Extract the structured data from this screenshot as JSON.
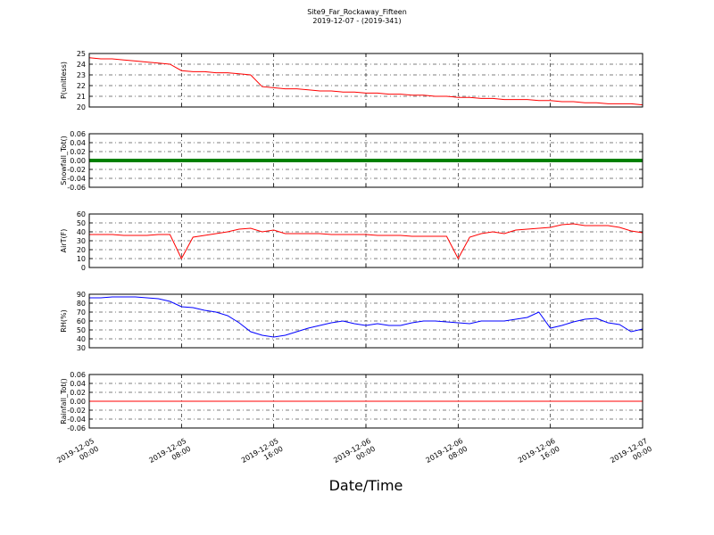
{
  "chart_data": [
    {
      "type": "line",
      "title": "Site9_Far_Rockaway_Fifteen",
      "subtitle": "2019-12-07 - (2019-341)",
      "ylabel": "P(unitless)",
      "x": [
        "2019-12-05 00:00",
        "2019-12-05 01:00",
        "2019-12-05 02:00",
        "2019-12-05 03:00",
        "2019-12-05 04:00",
        "2019-12-05 05:00",
        "2019-12-05 06:00",
        "2019-12-05 07:00",
        "2019-12-05 08:00",
        "2019-12-05 09:00",
        "2019-12-05 10:00",
        "2019-12-05 11:00",
        "2019-12-05 12:00",
        "2019-12-05 13:00",
        "2019-12-05 14:00",
        "2019-12-05 15:00",
        "2019-12-05 16:00",
        "2019-12-05 17:00",
        "2019-12-05 18:00",
        "2019-12-05 19:00",
        "2019-12-05 20:00",
        "2019-12-05 21:00",
        "2019-12-05 22:00",
        "2019-12-05 23:00",
        "2019-12-06 00:00",
        "2019-12-06 01:00",
        "2019-12-06 02:00",
        "2019-12-06 03:00",
        "2019-12-06 04:00",
        "2019-12-06 05:00",
        "2019-12-06 06:00",
        "2019-12-06 07:00",
        "2019-12-06 08:00",
        "2019-12-06 09:00",
        "2019-12-06 10:00",
        "2019-12-06 11:00",
        "2019-12-06 12:00",
        "2019-12-06 13:00",
        "2019-12-06 14:00",
        "2019-12-06 15:00",
        "2019-12-06 16:00",
        "2019-12-06 17:00",
        "2019-12-06 18:00",
        "2019-12-06 19:00",
        "2019-12-06 20:00",
        "2019-12-06 21:00",
        "2019-12-06 22:00",
        "2019-12-06 23:00",
        "2019-12-07 00:00"
      ],
      "series": [
        {
          "color": "#ff0000",
          "values": [
            24.6,
            24.5,
            24.5,
            24.4,
            24.3,
            24.2,
            24.1,
            24.0,
            23.4,
            23.3,
            23.3,
            23.2,
            23.2,
            23.1,
            23.0,
            21.9,
            21.8,
            21.7,
            21.7,
            21.6,
            21.5,
            21.5,
            21.4,
            21.4,
            21.3,
            21.3,
            21.2,
            21.2,
            21.1,
            21.1,
            21.0,
            21.0,
            20.9,
            20.9,
            20.8,
            20.8,
            20.7,
            20.7,
            20.7,
            20.6,
            20.6,
            20.5,
            20.5,
            20.4,
            20.4,
            20.3,
            20.3,
            20.3,
            20.2
          ]
        }
      ],
      "ylim": [
        20,
        25
      ],
      "yticks": [
        20,
        21,
        22,
        23,
        24,
        25
      ],
      "grid": true
    },
    {
      "type": "line",
      "ylabel": "Snowfall_Tot()",
      "x": [
        "2019-12-05 00:00",
        "2019-12-05 01:00",
        "2019-12-05 02:00",
        "2019-12-05 03:00",
        "2019-12-05 04:00",
        "2019-12-05 05:00",
        "2019-12-05 06:00",
        "2019-12-05 07:00",
        "2019-12-05 08:00",
        "2019-12-05 09:00",
        "2019-12-05 10:00",
        "2019-12-05 11:00",
        "2019-12-05 12:00",
        "2019-12-05 13:00",
        "2019-12-05 14:00",
        "2019-12-05 15:00",
        "2019-12-05 16:00",
        "2019-12-05 17:00",
        "2019-12-05 18:00",
        "2019-12-05 19:00",
        "2019-12-05 20:00",
        "2019-12-05 21:00",
        "2019-12-05 22:00",
        "2019-12-05 23:00",
        "2019-12-06 00:00",
        "2019-12-06 01:00",
        "2019-12-06 02:00",
        "2019-12-06 03:00",
        "2019-12-06 04:00",
        "2019-12-06 05:00",
        "2019-12-06 06:00",
        "2019-12-06 07:00",
        "2019-12-06 08:00",
        "2019-12-06 09:00",
        "2019-12-06 10:00",
        "2019-12-06 11:00",
        "2019-12-06 12:00",
        "2019-12-06 13:00",
        "2019-12-06 14:00",
        "2019-12-06 15:00",
        "2019-12-06 16:00",
        "2019-12-06 17:00",
        "2019-12-06 18:00",
        "2019-12-06 19:00",
        "2019-12-06 20:00",
        "2019-12-06 21:00",
        "2019-12-06 22:00",
        "2019-12-06 23:00",
        "2019-12-07 00:00"
      ],
      "series": [
        {
          "color": "#008000",
          "values": [
            0,
            0,
            0,
            0,
            0,
            0,
            0,
            0,
            0,
            0,
            0,
            0,
            0,
            0,
            0,
            0,
            0,
            0,
            0,
            0,
            0,
            0,
            0,
            0,
            0,
            0,
            0,
            0,
            0,
            0,
            0,
            0,
            0,
            0,
            0,
            0,
            0,
            0,
            0,
            0,
            0,
            0,
            0,
            0,
            0,
            0,
            0,
            0,
            0
          ]
        }
      ],
      "ylim": [
        -0.06,
        0.06
      ],
      "yticks": [
        -0.06,
        -0.04,
        -0.02,
        {
          "value": 0,
          "label": "0.00"
        },
        0.02,
        0.04,
        0.06
      ],
      "grid": true,
      "markers": true
    },
    {
      "type": "line",
      "ylabel": "AirT(F)",
      "x": [
        "2019-12-05 00:00",
        "2019-12-05 01:00",
        "2019-12-05 02:00",
        "2019-12-05 03:00",
        "2019-12-05 04:00",
        "2019-12-05 05:00",
        "2019-12-05 06:00",
        "2019-12-05 07:00",
        "2019-12-05 08:00",
        "2019-12-05 09:00",
        "2019-12-05 10:00",
        "2019-12-05 11:00",
        "2019-12-05 12:00",
        "2019-12-05 13:00",
        "2019-12-05 14:00",
        "2019-12-05 15:00",
        "2019-12-05 16:00",
        "2019-12-05 17:00",
        "2019-12-05 18:00",
        "2019-12-05 19:00",
        "2019-12-05 20:00",
        "2019-12-05 21:00",
        "2019-12-05 22:00",
        "2019-12-05 23:00",
        "2019-12-06 00:00",
        "2019-12-06 01:00",
        "2019-12-06 02:00",
        "2019-12-06 03:00",
        "2019-12-06 04:00",
        "2019-12-06 05:00",
        "2019-12-06 06:00",
        "2019-12-06 07:00",
        "2019-12-06 08:00",
        "2019-12-06 09:00",
        "2019-12-06 10:00",
        "2019-12-06 11:00",
        "2019-12-06 12:00",
        "2019-12-06 13:00",
        "2019-12-06 14:00",
        "2019-12-06 15:00",
        "2019-12-06 16:00",
        "2019-12-06 17:00",
        "2019-12-06 18:00",
        "2019-12-06 19:00",
        "2019-12-06 20:00",
        "2019-12-06 21:00",
        "2019-12-06 22:00",
        "2019-12-06 23:00",
        "2019-12-07 00:00"
      ],
      "series": [
        {
          "color": "#ff0000",
          "values": [
            37,
            37,
            37,
            36,
            36,
            36,
            37,
            37,
            10,
            34,
            36,
            38,
            40,
            43,
            44,
            40,
            42,
            38,
            38,
            38,
            38,
            37,
            37,
            37,
            37,
            36,
            36,
            36,
            35,
            35,
            35,
            35,
            10,
            34,
            38,
            40,
            38,
            42,
            43,
            44,
            45,
            48,
            49,
            47,
            47,
            47,
            45,
            41,
            39
          ]
        }
      ],
      "ylim": [
        0,
        60
      ],
      "yticks": [
        0,
        10,
        20,
        30,
        40,
        50,
        60
      ],
      "grid": true
    },
    {
      "type": "line",
      "ylabel": "RH(%)",
      "x": [
        "2019-12-05 00:00",
        "2019-12-05 01:00",
        "2019-12-05 02:00",
        "2019-12-05 03:00",
        "2019-12-05 04:00",
        "2019-12-05 05:00",
        "2019-12-05 06:00",
        "2019-12-05 07:00",
        "2019-12-05 08:00",
        "2019-12-05 09:00",
        "2019-12-05 10:00",
        "2019-12-05 11:00",
        "2019-12-05 12:00",
        "2019-12-05 13:00",
        "2019-12-05 14:00",
        "2019-12-05 15:00",
        "2019-12-05 16:00",
        "2019-12-05 17:00",
        "2019-12-05 18:00",
        "2019-12-05 19:00",
        "2019-12-05 20:00",
        "2019-12-05 21:00",
        "2019-12-05 22:00",
        "2019-12-05 23:00",
        "2019-12-06 00:00",
        "2019-12-06 01:00",
        "2019-12-06 02:00",
        "2019-12-06 03:00",
        "2019-12-06 04:00",
        "2019-12-06 05:00",
        "2019-12-06 06:00",
        "2019-12-06 07:00",
        "2019-12-06 08:00",
        "2019-12-06 09:00",
        "2019-12-06 10:00",
        "2019-12-06 11:00",
        "2019-12-06 12:00",
        "2019-12-06 13:00",
        "2019-12-06 14:00",
        "2019-12-06 15:00",
        "2019-12-06 16:00",
        "2019-12-06 17:00",
        "2019-12-06 18:00",
        "2019-12-06 19:00",
        "2019-12-06 20:00",
        "2019-12-06 21:00",
        "2019-12-06 22:00",
        "2019-12-06 23:00",
        "2019-12-07 00:00"
      ],
      "series": [
        {
          "color": "#0000ff",
          "values": [
            86,
            86,
            87,
            87,
            87,
            86,
            85,
            82,
            76,
            75,
            72,
            70,
            66,
            58,
            48,
            44,
            42,
            44,
            48,
            52,
            55,
            58,
            60,
            57,
            55,
            57,
            55,
            55,
            58,
            60,
            60,
            59,
            58,
            57,
            60,
            60,
            60,
            62,
            64,
            70,
            52,
            55,
            59,
            62,
            63,
            58,
            56,
            48,
            51
          ]
        }
      ],
      "ylim": [
        30,
        90
      ],
      "yticks": [
        30,
        40,
        50,
        60,
        70,
        80,
        90
      ],
      "grid": true
    },
    {
      "type": "line",
      "ylabel": "Rainfall_Tot()",
      "xlabel": "Date/Time",
      "x": [
        "2019-12-05 00:00",
        "2019-12-05 01:00",
        "2019-12-05 02:00",
        "2019-12-05 03:00",
        "2019-12-05 04:00",
        "2019-12-05 05:00",
        "2019-12-05 06:00",
        "2019-12-05 07:00",
        "2019-12-05 08:00",
        "2019-12-05 09:00",
        "2019-12-05 10:00",
        "2019-12-05 11:00",
        "2019-12-05 12:00",
        "2019-12-05 13:00",
        "2019-12-05 14:00",
        "2019-12-05 15:00",
        "2019-12-05 16:00",
        "2019-12-05 17:00",
        "2019-12-05 18:00",
        "2019-12-05 19:00",
        "2019-12-05 20:00",
        "2019-12-05 21:00",
        "2019-12-05 22:00",
        "2019-12-05 23:00",
        "2019-12-06 00:00",
        "2019-12-06 01:00",
        "2019-12-06 02:00",
        "2019-12-06 03:00",
        "2019-12-06 04:00",
        "2019-12-06 05:00",
        "2019-12-06 06:00",
        "2019-12-06 07:00",
        "2019-12-06 08:00",
        "2019-12-06 09:00",
        "2019-12-06 10:00",
        "2019-12-06 11:00",
        "2019-12-06 12:00",
        "2019-12-06 13:00",
        "2019-12-06 14:00",
        "2019-12-06 15:00",
        "2019-12-06 16:00",
        "2019-12-06 17:00",
        "2019-12-06 18:00",
        "2019-12-06 19:00",
        "2019-12-06 20:00",
        "2019-12-06 21:00",
        "2019-12-06 22:00",
        "2019-12-06 23:00",
        "2019-12-07 00:00"
      ],
      "series": [
        {
          "color": "#ff0000",
          "values": [
            0,
            0,
            0,
            0,
            0,
            0,
            0,
            0,
            0,
            0,
            0,
            0,
            0,
            0,
            0,
            0,
            0,
            0,
            0,
            0,
            0,
            0,
            0,
            0,
            0,
            0,
            0,
            0,
            0,
            0,
            0,
            0,
            0,
            0,
            0,
            0,
            0,
            0,
            0,
            0,
            0,
            0,
            0,
            0,
            0,
            0,
            0,
            0,
            0
          ]
        }
      ],
      "ylim": [
        -0.06,
        0.06
      ],
      "yticks": [
        -0.06,
        -0.04,
        -0.02,
        {
          "value": 0,
          "label": "0.00"
        },
        0.02,
        0.04,
        0.06
      ],
      "grid": true,
      "xlim": [
        "2019-12-05 00:00",
        "2019-12-07 00:00"
      ],
      "xticks": [
        "2019-12-05 00:00",
        "2019-12-05 08:00",
        "2019-12-05 16:00",
        "2019-12-06 00:00",
        "2019-12-06 08:00",
        "2019-12-06 16:00",
        "2019-12-07 00:00"
      ]
    }
  ]
}
